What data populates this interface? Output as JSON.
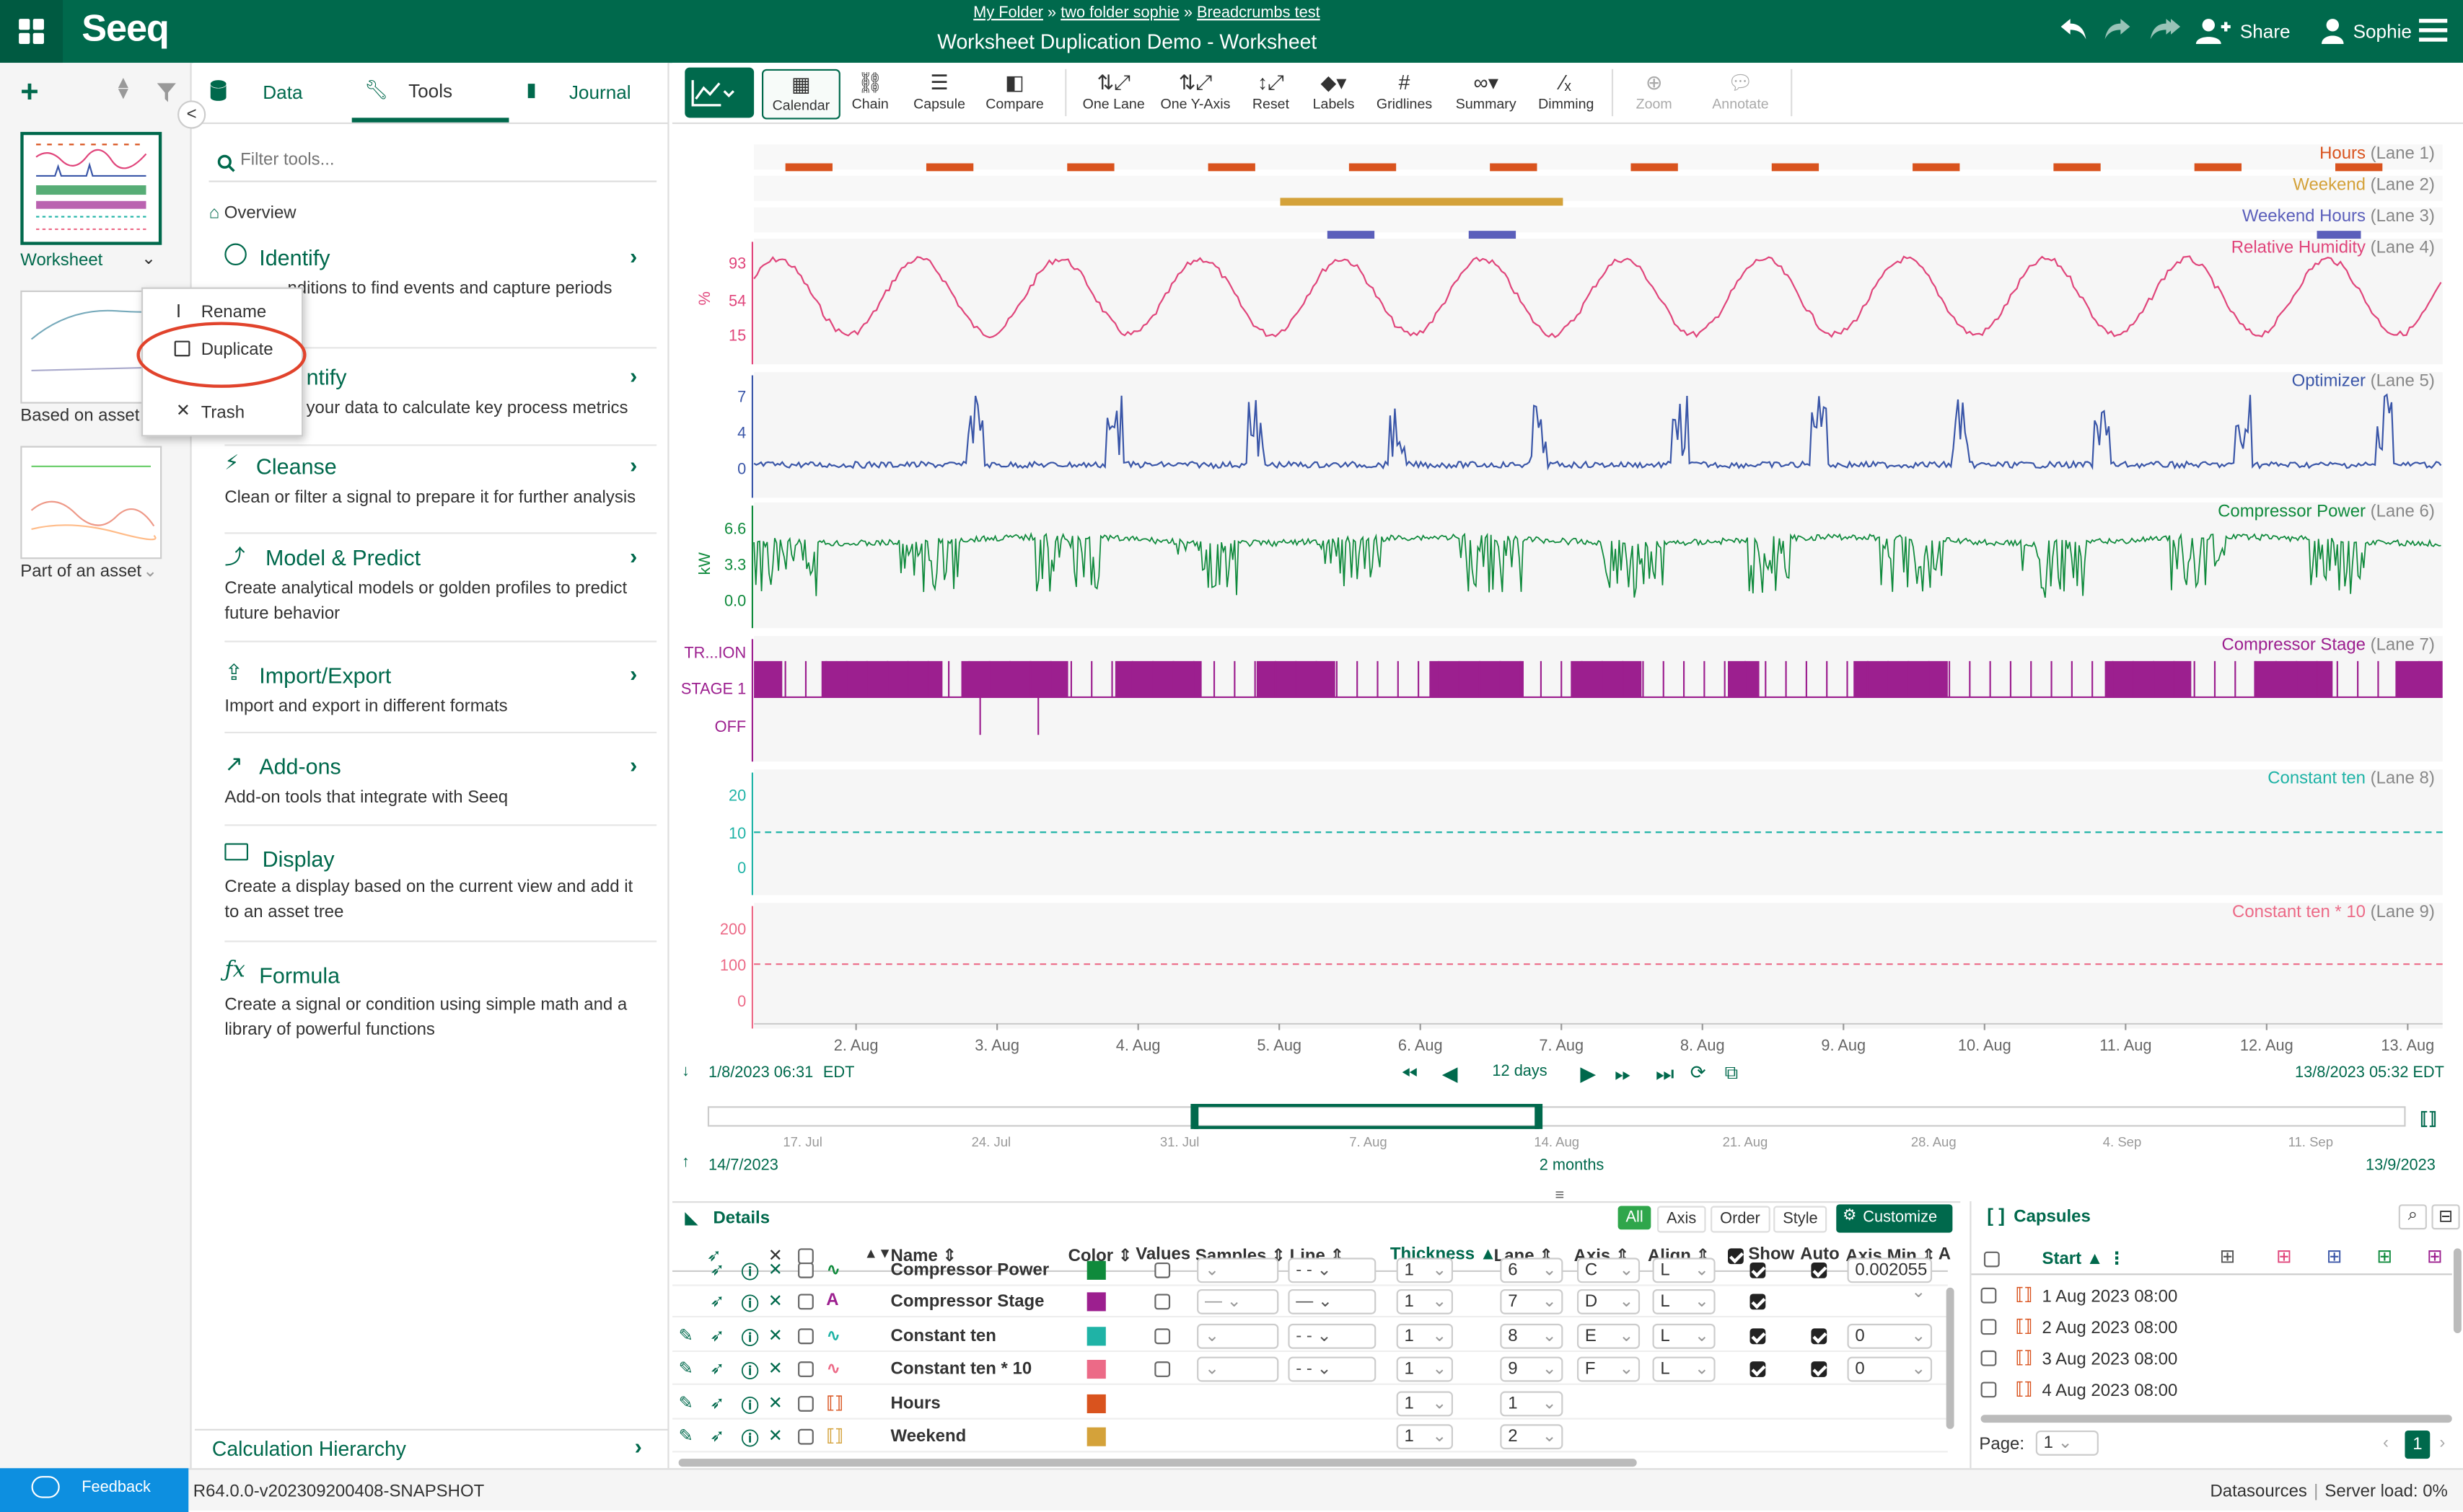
{
  "header": {
    "breadcrumb": [
      "My Folder",
      "two folder sophie",
      "Breadcrumbs test"
    ],
    "breadcrumb_sep": "»",
    "title": "Worksheet Duplication Demo - Worksheet",
    "logo": "Seeq",
    "share_label": "Share",
    "user_name": "Sophie"
  },
  "worksheets": [
    {
      "label": "Worksheet"
    },
    {
      "label": "Based on asset"
    },
    {
      "label": "Part of an asset"
    }
  ],
  "context_menu": {
    "items": [
      "Rename",
      "Duplicate",
      "Trash"
    ]
  },
  "tabs": {
    "data": "Data",
    "tools": "Tools",
    "journal": "Journal"
  },
  "tools_panel": {
    "filter_placeholder": "Filter tools...",
    "overview": "Overview",
    "items": [
      {
        "title": "Identify",
        "desc": "Create conditions to find events and capture periods"
      },
      {
        "title": "Quantify",
        "desc": "Use your data to calculate key process metrics"
      },
      {
        "title": "Cleanse",
        "desc": "Clean or filter a signal to prepare it for further analysis"
      },
      {
        "title": "Model & Predict",
        "desc": "Create analytical models or golden profiles to predict future behavior"
      },
      {
        "title": "Import/Export",
        "desc": "Import and export in different formats"
      },
      {
        "title": "Add-ons",
        "desc": "Add-on tools that integrate with Seeq"
      },
      {
        "title": "Display",
        "desc": "Create a display based on the current view and add it to an asset tree"
      },
      {
        "title": "Formula",
        "desc": "Create a signal or condition using simple math and a library of powerful functions"
      }
    ],
    "visible_identify_desc_tail": "nditions to find events and capture periods",
    "visible_quantify_title_tail": "ntify",
    "visible_quantify_desc_tail": "your data to calculate key process metrics",
    "calc_hierarchy": "Calculation Hierarchy"
  },
  "toolbar": {
    "buttons": [
      "Calendar",
      "Chain",
      "Capsule",
      "Compare",
      "One Lane",
      "One Y-Axis",
      "Reset",
      "Labels",
      "Gridlines",
      "Summary",
      "Dimming",
      "Zoom",
      "Annotate"
    ]
  },
  "lanes": [
    {
      "name": "Hours",
      "lane": "(Lane 1)",
      "color": "#d9531e"
    },
    {
      "name": "Weekend",
      "lane": "(Lane 2)",
      "color": "#d4a23a"
    },
    {
      "name": "Weekend Hours",
      "lane": "(Lane 3)",
      "color": "#5b5fbb"
    },
    {
      "name": "Relative Humidity",
      "lane": "(Lane 4)",
      "color": "#e0457b",
      "unit": "%",
      "ticks": [
        "93",
        "54",
        "15"
      ]
    },
    {
      "name": "Optimizer",
      "lane": "(Lane 5)",
      "color": "#3a56a8",
      "ticks": [
        "7",
        "4",
        "0"
      ]
    },
    {
      "name": "Compressor Power",
      "lane": "(Lane 6)",
      "color": "#0f8a3c",
      "unit": "kW",
      "ticks": [
        "6.6",
        "3.3",
        "0.0"
      ]
    },
    {
      "name": "Compressor Stage",
      "lane": "(Lane 7)",
      "color": "#9c1f8f",
      "ticks": [
        "TR...ION",
        "STAGE 1",
        "OFF"
      ]
    },
    {
      "name": "Constant ten",
      "lane": "(Lane 8)",
      "color": "#1fb3a6",
      "ticks": [
        "20",
        "10",
        "0"
      ]
    },
    {
      "name": "Constant ten * 10",
      "lane": "(Lane 9)",
      "color": "#ec6a87",
      "ticks": [
        "200",
        "100",
        "0"
      ]
    }
  ],
  "chart_data": {
    "type": "line",
    "x_ticks": [
      "2. Aug",
      "3. Aug",
      "4. Aug",
      "5. Aug",
      "6. Aug",
      "7. Aug",
      "8. Aug",
      "9. Aug",
      "10. Aug",
      "11. Aug",
      "12. Aug",
      "13. Aug"
    ],
    "x_range": [
      "1/8/2023 06:31",
      "13/8/2023 05:32"
    ],
    "series": [
      {
        "name": "Constant ten",
        "values": [
          10
        ]
      },
      {
        "name": "Constant ten * 10",
        "values": [
          100
        ]
      },
      {
        "name": "Relative Humidity",
        "ylim": [
          15,
          93
        ]
      },
      {
        "name": "Optimizer",
        "ylim": [
          0,
          7
        ]
      },
      {
        "name": "Compressor Power",
        "ylim": [
          0.0,
          6.6
        ]
      }
    ]
  },
  "time": {
    "start": "1/8/2023 06:31",
    "tz": "EDT",
    "end": "13/8/2023 05:32",
    "end_tz": "EDT",
    "duration": "12 days",
    "overview_start": "14/7/2023",
    "overview_end": "13/9/2023",
    "overview_duration": "2 months",
    "overview_ticks": [
      "17. Jul",
      "24. Jul",
      "31. Jul",
      "7. Aug",
      "14. Aug",
      "21. Aug",
      "28. Aug",
      "4. Sep",
      "11. Sep"
    ]
  },
  "details": {
    "title": "Details",
    "view_buttons": [
      "All",
      "Axis",
      "Order",
      "Style"
    ],
    "customize": "Customize",
    "columns": [
      "Name",
      "Color",
      "Values",
      "Samples",
      "Line",
      "Thickness",
      "Lane",
      "Axis",
      "Align",
      "Show",
      "Auto",
      "Axis Min",
      "A"
    ],
    "rows": [
      {
        "name": "Compressor Power",
        "color": "#0f8a3c",
        "thickness": "1",
        "lane": "6",
        "axis": "C",
        "align": "L",
        "axis_min": "0.002055"
      },
      {
        "name": "Compressor Stage",
        "color": "#9c1f8f",
        "thickness": "1",
        "lane": "7",
        "axis": "D",
        "align": "L",
        "axis_min": ""
      },
      {
        "name": "Constant ten",
        "color": "#1fb3a6",
        "thickness": "1",
        "lane": "8",
        "axis": "E",
        "align": "L",
        "axis_min": "0"
      },
      {
        "name": "Constant ten * 10",
        "color": "#ec6a87",
        "thickness": "1",
        "lane": "9",
        "axis": "F",
        "align": "L",
        "axis_min": "0"
      },
      {
        "name": "Hours",
        "color": "#d9531e",
        "thickness": "1",
        "lane": "1",
        "axis": "",
        "align": "",
        "axis_min": ""
      },
      {
        "name": "Weekend",
        "color": "#d4a23a",
        "thickness": "1",
        "lane": "2",
        "axis": "",
        "align": "",
        "axis_min": ""
      }
    ]
  },
  "capsules": {
    "title": "Capsules",
    "start_col": "Start",
    "rows": [
      "1 Aug 2023 08:00",
      "2 Aug 2023 08:00",
      "3 Aug 2023 08:00",
      "4 Aug 2023 08:00"
    ],
    "page_label": "Page:",
    "page_value": "1",
    "page_current": "1"
  },
  "status": {
    "feedback": "Feedback",
    "version": "R64.0.0-v202309200408-SNAPSHOT",
    "datasources": "Datasources",
    "server_load": "Server load: 0%"
  }
}
